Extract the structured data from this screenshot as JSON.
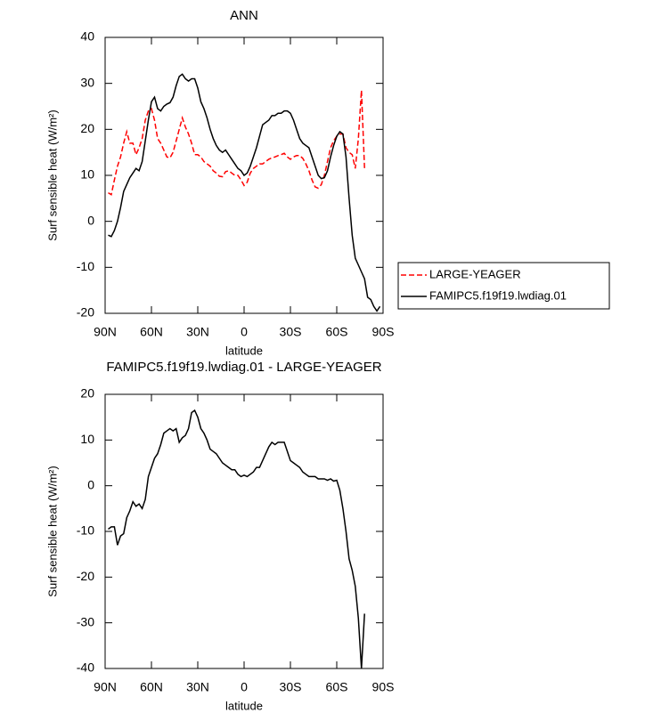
{
  "chart_data": [
    {
      "type": "line",
      "title": "ANN",
      "xlabel": "latitude",
      "ylabel": "Surf sensible heat (W/m²)",
      "xlim": [
        90,
        -90
      ],
      "ylim": [
        -20,
        40
      ],
      "xticks": [
        {
          "value": 90,
          "label": "90N"
        },
        {
          "value": 60,
          "label": "60N"
        },
        {
          "value": 30,
          "label": "30N"
        },
        0,
        {
          "value": -30,
          "label": "30S"
        },
        {
          "value": -60,
          "label": "60S"
        },
        {
          "value": -90,
          "label": "90S"
        }
      ],
      "yticks": [
        -20,
        -10,
        0,
        10,
        20,
        30,
        40
      ],
      "legend": "outside right",
      "x": [
        88,
        86,
        84,
        82,
        80,
        78,
        76,
        74,
        72,
        70,
        68,
        66,
        64,
        62,
        60,
        58,
        56,
        54,
        52,
        50,
        48,
        46,
        44,
        42,
        40,
        38,
        36,
        34,
        32,
        30,
        28,
        26,
        24,
        22,
        20,
        18,
        16,
        14,
        12,
        10,
        8,
        6,
        4,
        2,
        0,
        -2,
        -4,
        -6,
        -8,
        -10,
        -12,
        -14,
        -16,
        -18,
        -20,
        -22,
        -24,
        -26,
        -28,
        -30,
        -32,
        -34,
        -36,
        -38,
        -40,
        -42,
        -44,
        -46,
        -48,
        -50,
        -52,
        -54,
        -56,
        -58,
        -60,
        -62,
        -64,
        -66,
        -68,
        -70,
        -72,
        -74,
        -76,
        -78,
        -80,
        -82,
        -84,
        -86,
        -88
      ],
      "series": [
        {
          "name": "LARGE-YEAGER",
          "color": "#ff0000",
          "linestyle": "dashed",
          "values": [
            6.2,
            5.8,
            9,
            12,
            14,
            17,
            19.5,
            17,
            17,
            14.5,
            16,
            18,
            22,
            24,
            24.5,
            22,
            18,
            17,
            15.5,
            14,
            13.8,
            15,
            17.5,
            20,
            22.5,
            20.5,
            19,
            17,
            14.5,
            14.5,
            14,
            13,
            12.5,
            12,
            11,
            10.5,
            9.8,
            9.7,
            10.8,
            11,
            10.5,
            10,
            10,
            9,
            7.8,
            8.5,
            10.5,
            11.5,
            12,
            12.5,
            12.5,
            13,
            13.5,
            13.8,
            14,
            14.3,
            14.5,
            14.8,
            14,
            13.5,
            14,
            14.3,
            14.3,
            13.7,
            12.5,
            11,
            9,
            7.5,
            7.2,
            8,
            10,
            13,
            16,
            17.5,
            18.5,
            19,
            19,
            16,
            15,
            14.5,
            11.5,
            18,
            28.5,
            11.5,
            null,
            null,
            null,
            null,
            null
          ]
        },
        {
          "name": "FAMIPC5.f19f19.lwdiag.01",
          "color": "#000000",
          "linestyle": "solid",
          "values": [
            -3,
            -3.3,
            -2,
            0,
            3,
            6.5,
            8,
            9.5,
            10.5,
            11.5,
            11,
            13,
            17.5,
            22,
            26,
            27,
            24.5,
            24,
            25,
            25.5,
            25.8,
            27,
            29.5,
            31.5,
            32,
            31,
            30.5,
            31,
            31,
            29,
            26,
            24.5,
            22.5,
            20,
            18,
            16.5,
            15.5,
            15,
            15.5,
            14.5,
            13.5,
            12.5,
            11.5,
            11,
            10,
            10.5,
            12,
            14,
            16,
            18.5,
            21,
            21.5,
            22,
            23,
            23,
            23.5,
            23.5,
            24,
            24,
            23.5,
            22,
            20,
            18,
            17,
            16.5,
            16,
            14,
            12,
            10,
            9.3,
            9.5,
            11,
            14,
            16.5,
            18.5,
            19.5,
            19,
            14,
            5,
            -3,
            -8,
            -9.5,
            -11,
            -12.5,
            -16.5,
            -17,
            -18.5,
            -19.5,
            -18.5
          ]
        }
      ]
    },
    {
      "type": "line",
      "title": "FAMIPC5.f19f19.lwdiag.01 - LARGE-YEAGER",
      "xlabel": "latitude",
      "ylabel": "Surf sensible heat (W/m²)",
      "xlim": [
        90,
        -90
      ],
      "ylim": [
        -40,
        20
      ],
      "xticks": [
        {
          "value": 90,
          "label": "90N"
        },
        {
          "value": 60,
          "label": "60N"
        },
        {
          "value": 30,
          "label": "30N"
        },
        0,
        {
          "value": -30,
          "label": "30S"
        },
        {
          "value": -60,
          "label": "60S"
        },
        {
          "value": -90,
          "label": "90S"
        }
      ],
      "yticks": [
        -40,
        -30,
        -20,
        -10,
        0,
        10,
        20
      ],
      "x": [
        88,
        86,
        84,
        82,
        80,
        78,
        76,
        74,
        72,
        70,
        68,
        66,
        64,
        62,
        60,
        58,
        56,
        54,
        52,
        50,
        48,
        46,
        44,
        42,
        40,
        38,
        36,
        34,
        32,
        30,
        28,
        26,
        24,
        22,
        20,
        18,
        16,
        14,
        12,
        10,
        8,
        6,
        4,
        2,
        0,
        -2,
        -4,
        -6,
        -8,
        -10,
        -12,
        -14,
        -16,
        -18,
        -20,
        -22,
        -24,
        -26,
        -28,
        -30,
        -32,
        -34,
        -36,
        -38,
        -40,
        -42,
        -44,
        -46,
        -48,
        -50,
        -52,
        -54,
        -56,
        -58,
        -60,
        -62,
        -64,
        -66,
        -68,
        -70,
        -72,
        -74,
        -76,
        -78
      ],
      "series": [
        {
          "color": "#000000",
          "linestyle": "solid",
          "values": [
            -9.5,
            -9,
            -9,
            -13,
            -11,
            -10.5,
            -7,
            -5.5,
            -3.5,
            -4.5,
            -4,
            -5,
            -3,
            2,
            4,
            6,
            7,
            9,
            11.5,
            12,
            12.5,
            12,
            12.5,
            9.5,
            10.5,
            11,
            12.5,
            16,
            16.5,
            15,
            12.5,
            11.5,
            10,
            8,
            7.5,
            7,
            6,
            5,
            4.5,
            4,
            3.5,
            3.5,
            2.5,
            2,
            2.3,
            2,
            2.5,
            3,
            4,
            4,
            5.5,
            7,
            8.5,
            9.5,
            9,
            9.5,
            9.5,
            9.5,
            7.5,
            5.5,
            5,
            4.5,
            4,
            3,
            2.5,
            2,
            2,
            2,
            1.5,
            1.5,
            1.5,
            1.2,
            1.5,
            1,
            1.2,
            -1,
            -5,
            -10,
            -16,
            -18.5,
            -22,
            -29,
            -40,
            -28
          ]
        }
      ]
    }
  ]
}
